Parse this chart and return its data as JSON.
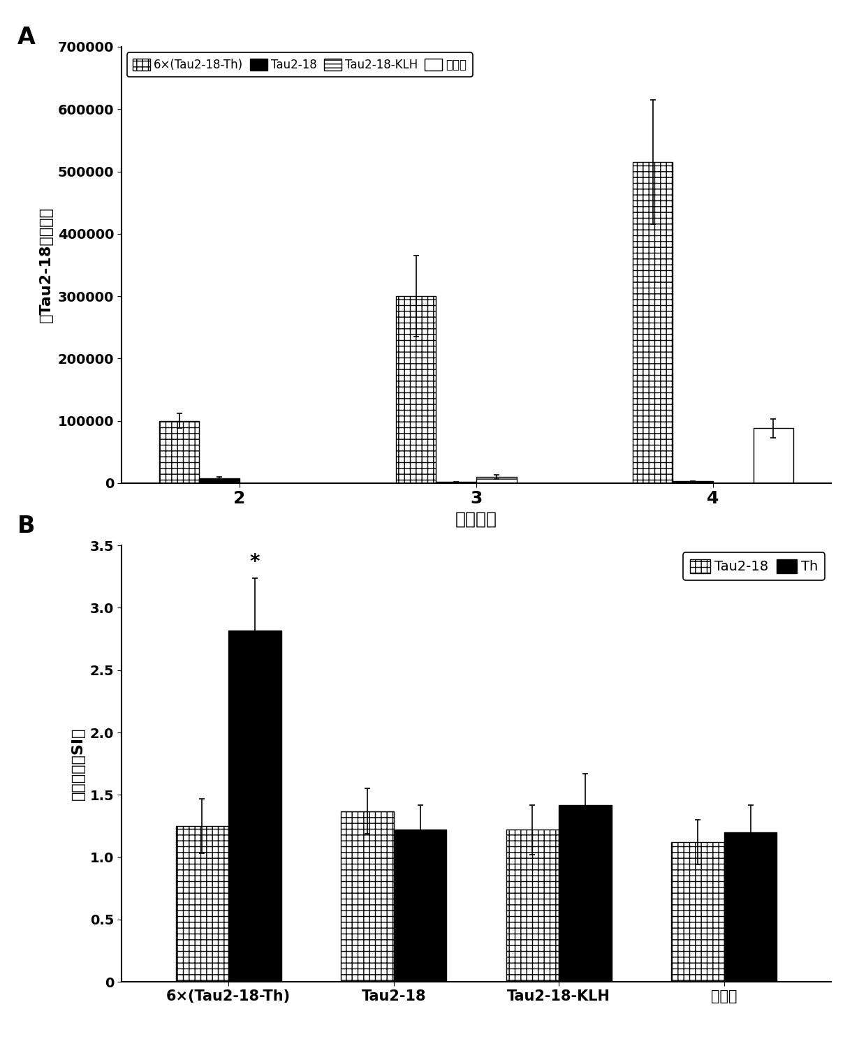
{
  "panel_A": {
    "groups": [
      2,
      3,
      4
    ],
    "series": [
      {
        "label": "6×(Tau2-18-Th)",
        "values": [
          100000,
          300000,
          515000
        ],
        "errors": [
          12000,
          65000,
          100000
        ],
        "hatch": "++",
        "facecolor": "white",
        "edgecolor": "black"
      },
      {
        "label": "Tau2-18",
        "values": [
          8000,
          2000,
          3000
        ],
        "errors": [
          1500,
          500,
          500
        ],
        "hatch": "",
        "facecolor": "black",
        "edgecolor": "black"
      },
      {
        "label": "Tau2-18-KLH",
        "values": [
          0,
          10000,
          0
        ],
        "errors": [
          0,
          3000,
          0
        ],
        "hatch": "---",
        "facecolor": "white",
        "edgecolor": "black"
      },
      {
        "label": "对照组",
        "values": [
          0,
          0,
          88000
        ],
        "errors": [
          0,
          0,
          15000
        ],
        "hatch": "===",
        "facecolor": "white",
        "edgecolor": "black"
      }
    ],
    "ylabel": "抗Tau2-18抗体滞度",
    "xlabel": "免疫次数",
    "ylim": [
      0,
      700000
    ],
    "yticks": [
      0,
      100000,
      200000,
      300000,
      400000,
      500000,
      600000,
      700000
    ]
  },
  "panel_B": {
    "groups": [
      "6×(Tau2-18-Th)",
      "Tau2-18",
      "Tau2-18-KLH",
      "对照组"
    ],
    "series": [
      {
        "label": "Tau2-18",
        "values": [
          1.25,
          1.37,
          1.22,
          1.12
        ],
        "errors": [
          0.22,
          0.18,
          0.2,
          0.18
        ],
        "hatch": "++",
        "facecolor": "white",
        "edgecolor": "black"
      },
      {
        "label": "Th",
        "values": [
          2.82,
          1.22,
          1.42,
          1.2
        ],
        "errors": [
          0.42,
          0.2,
          0.25,
          0.22
        ],
        "hatch": "",
        "facecolor": "black",
        "edgecolor": "black"
      }
    ],
    "ylabel": "刺激指数（SI）",
    "ylim": [
      0,
      3.5
    ],
    "yticks": [
      0,
      0.5,
      1.0,
      1.5,
      2.0,
      2.5,
      3.0,
      3.5
    ],
    "star_annotation": {
      "group": 0,
      "series": 1,
      "text": "*"
    }
  }
}
